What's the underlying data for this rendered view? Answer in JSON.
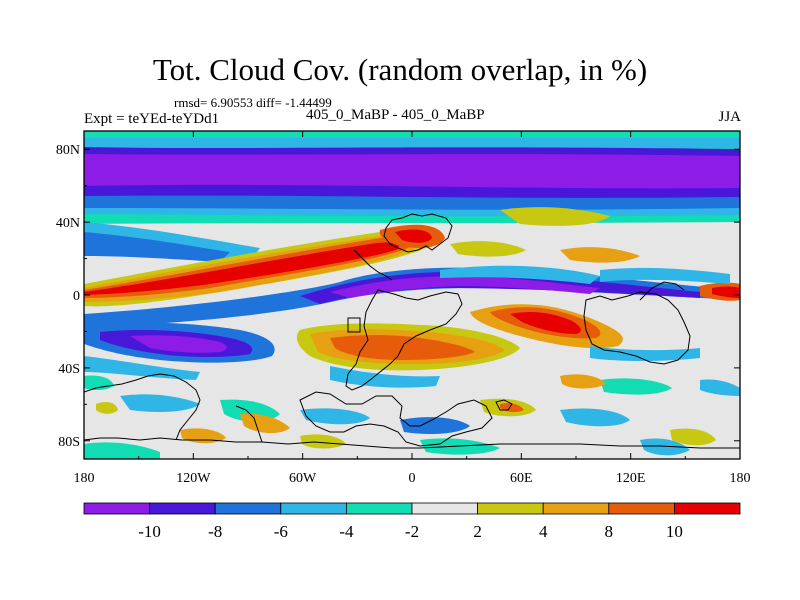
{
  "title": "Tot. Cloud Cov. (random overlap, in %)",
  "stats_line": "rmsd= 6.90553 diff= -1.44499",
  "experiment_label": "Expt = teYEd-teYDd1",
  "comparison_label": "405_0_MaBP - 405_0_MaBP",
  "season_label": "JJA",
  "lat_ticks": [
    {
      "value": 80,
      "label": "80N"
    },
    {
      "value": 40,
      "label": "40N"
    },
    {
      "value": 0,
      "label": "0"
    },
    {
      "value": -40,
      "label": "40S"
    },
    {
      "value": -80,
      "label": "80S"
    }
  ],
  "lon_ticks": [
    {
      "value": -180,
      "label": "180"
    },
    {
      "value": -120,
      "label": "120W"
    },
    {
      "value": -60,
      "label": "60W"
    },
    {
      "value": 0,
      "label": "0"
    },
    {
      "value": 60,
      "label": "60E"
    },
    {
      "value": 120,
      "label": "120E"
    },
    {
      "value": 180,
      "label": "180"
    }
  ],
  "colorbar": {
    "labels": [
      "-10",
      "-8",
      "-6",
      "-4",
      "-2",
      "2",
      "4",
      "8",
      "10"
    ],
    "colors": [
      "#8c1ce6",
      "#4818d8",
      "#1f74dc",
      "#2fb6e6",
      "#12dcb4",
      "#e6e6e6",
      "#c8c812",
      "#e6a012",
      "#e65c0a",
      "#e60000"
    ]
  },
  "map_data": {
    "lon_range": [
      -180,
      180
    ],
    "lat_range": [
      -90,
      90
    ],
    "field": "cloud cover difference (%)"
  }
}
